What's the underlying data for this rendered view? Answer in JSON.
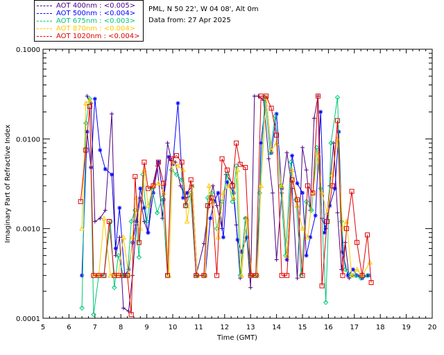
{
  "header": {
    "location": "PML, N 50 22', W 04 08', Alt 0m",
    "data_date": "Data from: 27 Apr 2025"
  },
  "chart_data": {
    "type": "line",
    "title": "",
    "xlabel": "Time (GMT)",
    "ylabel": "Imaginary Part of Refractive Index",
    "xlim": [
      5,
      20
    ],
    "ylim": [
      0.0001,
      0.1
    ],
    "yscale": "log",
    "x_ticks": [
      "5",
      "6",
      "7",
      "8",
      "9",
      "10",
      "11",
      "12",
      "13",
      "14",
      "15",
      "16",
      "17",
      "18",
      "19",
      "20"
    ],
    "y_ticks": [
      "0.0001",
      "0.0010",
      "0.0100",
      "0.1000"
    ],
    "grid": false,
    "legend_position": "top-left",
    "series": [
      {
        "name": "AOT  400nm : <0.005>",
        "color": "#4b0082",
        "marker": "plus",
        "x": [
          6.7,
          6.85,
          7.0,
          7.2,
          7.4,
          7.65,
          7.8,
          7.95,
          8.1,
          8.3,
          8.45,
          8.6,
          8.75,
          8.9,
          9.05,
          9.2,
          9.4,
          9.6,
          9.8,
          9.95,
          10.1,
          10.3,
          10.5,
          10.7,
          10.9,
          11.2,
          11.4,
          11.55,
          11.7,
          11.9,
          12.05,
          12.3,
          12.45,
          12.6,
          12.8,
          13.0,
          13.15,
          13.3,
          13.5,
          13.7,
          13.85,
          14.0,
          14.2,
          14.4,
          14.6,
          14.8,
          15.0,
          15.15,
          15.3,
          15.45,
          15.6,
          15.75,
          15.9,
          16.05,
          16.2,
          16.35,
          16.5,
          16.65,
          16.8,
          16.95,
          17.1,
          17.3,
          17.5
        ],
        "y": [
          0.03,
          0.025,
          0.0012,
          0.0013,
          0.0016,
          0.019,
          0.0005,
          0.0008,
          0.00013,
          0.00012,
          0.0003,
          0.0011,
          0.0022,
          0.0012,
          0.0009,
          0.0028,
          0.005,
          0.0013,
          0.009,
          0.0058,
          0.0055,
          0.003,
          0.0022,
          0.0023,
          0.0003,
          0.00068,
          0.0019,
          0.003,
          0.0018,
          0.001,
          0.004,
          0.0032,
          0.0011,
          0.00028,
          0.0013,
          0.00022,
          0.03,
          0.03,
          0.027,
          0.006,
          0.0025,
          0.00045,
          0.0025,
          0.007,
          0.0028,
          0.00028,
          0.008,
          0.0045,
          0.0016,
          0.017,
          0.03,
          0.0013,
          0.001,
          0.003,
          0.009,
          0.0015,
          0.00035,
          0.0007,
          0.00028,
          0.0003,
          0.0003,
          0.0003,
          0.0003
        ]
      },
      {
        "name": "AOT  500nm : <0.004>",
        "color": "#0000ff",
        "marker": "asterisk",
        "x": [
          6.5,
          6.7,
          6.85,
          7.0,
          7.2,
          7.4,
          7.65,
          7.8,
          7.95,
          8.15,
          8.3,
          8.45,
          8.6,
          8.75,
          8.9,
          9.05,
          9.25,
          9.45,
          9.65,
          9.85,
          10.0,
          10.2,
          10.4,
          10.55,
          10.75,
          10.95,
          11.25,
          11.45,
          11.6,
          11.75,
          11.95,
          12.1,
          12.35,
          12.5,
          12.65,
          12.85,
          13.05,
          13.25,
          13.4,
          13.6,
          13.8,
          14.0,
          14.2,
          14.4,
          14.6,
          14.8,
          15.0,
          15.15,
          15.3,
          15.5,
          15.7,
          15.85,
          16.05,
          16.25,
          16.4,
          16.55,
          16.75,
          16.95,
          17.1,
          17.3,
          17.55
        ],
        "y": [
          0.0003,
          0.012,
          0.0048,
          0.028,
          0.0075,
          0.0046,
          0.004,
          0.0006,
          0.0017,
          0.0003,
          0.00035,
          0.0007,
          0.0012,
          0.0028,
          0.0017,
          0.0009,
          0.0025,
          0.0055,
          0.0021,
          0.0063,
          0.0052,
          0.025,
          0.0022,
          0.0025,
          0.003,
          0.0003,
          0.0003,
          0.0013,
          0.002,
          0.0025,
          0.0008,
          0.0033,
          0.0025,
          0.00075,
          0.00055,
          0.0008,
          0.0003,
          0.0003,
          0.009,
          0.029,
          0.007,
          0.019,
          0.0028,
          0.00045,
          0.0065,
          0.0032,
          0.0025,
          0.0005,
          0.0008,
          0.0014,
          0.02,
          0.0009,
          0.0018,
          0.0028,
          0.012,
          0.00055,
          0.0003,
          0.00035,
          0.0003,
          0.00028,
          0.0003
        ]
      },
      {
        "name": "AOT  675nm : <0.003>",
        "color": "#00c878",
        "marker": "diamond",
        "x": [
          6.5,
          6.65,
          6.8,
          6.95,
          7.15,
          7.35,
          7.6,
          7.75,
          7.9,
          8.1,
          8.25,
          8.4,
          8.55,
          8.7,
          8.85,
          9.0,
          9.2,
          9.4,
          9.6,
          9.8,
          9.95,
          10.15,
          10.35,
          10.5,
          10.7,
          10.9,
          11.2,
          11.35,
          11.5,
          11.7,
          11.9,
          12.1,
          12.3,
          12.45,
          12.6,
          12.8,
          13.0,
          13.2,
          13.35,
          13.55,
          13.75,
          13.95,
          14.15,
          14.35,
          14.55,
          14.75,
          14.95,
          15.15,
          15.35,
          15.55,
          15.7,
          15.9,
          16.1,
          16.35,
          16.5,
          16.65,
          16.85,
          17.05,
          17.25,
          17.5
        ],
        "y": [
          0.00013,
          0.015,
          0.028,
          0.00011,
          0.0003,
          0.0003,
          0.0012,
          0.00022,
          0.0005,
          0.0003,
          0.0003,
          0.0012,
          0.0016,
          0.00048,
          0.004,
          0.0012,
          0.0028,
          0.0015,
          0.0022,
          0.0003,
          0.0045,
          0.004,
          0.0035,
          0.0018,
          0.0025,
          0.0003,
          0.0003,
          0.0022,
          0.0025,
          0.001,
          0.002,
          0.004,
          0.002,
          0.005,
          0.0003,
          0.0013,
          0.0003,
          0.0003,
          0.0025,
          0.029,
          0.007,
          0.018,
          0.003,
          0.0005,
          0.0055,
          0.0021,
          0.0003,
          0.002,
          0.0016,
          0.008,
          0.0028,
          0.00015,
          0.009,
          0.029,
          0.0012,
          0.00035,
          0.0003,
          0.0003,
          0.00028,
          0.0003
        ]
      },
      {
        "name": "AOT  870nm : <0.004>",
        "color": "#ffc800",
        "marker": "triangle",
        "x": [
          6.5,
          6.65,
          6.8,
          6.95,
          7.15,
          7.35,
          7.6,
          7.75,
          7.9,
          8.1,
          8.3,
          8.45,
          8.6,
          8.75,
          8.9,
          9.05,
          9.25,
          9.45,
          9.65,
          9.85,
          10.0,
          10.2,
          10.4,
          10.55,
          10.75,
          10.95,
          11.25,
          11.4,
          11.55,
          11.75,
          11.95,
          12.15,
          12.35,
          12.5,
          12.65,
          12.85,
          13.05,
          13.25,
          13.4,
          13.6,
          13.8,
          14.0,
          14.2,
          14.4,
          14.6,
          14.8,
          15.0,
          15.2,
          15.4,
          15.6,
          15.75,
          15.95,
          16.15,
          16.35,
          16.55,
          16.7,
          16.9,
          17.1,
          17.3,
          17.6
        ],
        "y": [
          0.001,
          0.025,
          0.027,
          0.0003,
          0.0003,
          0.0013,
          0.0003,
          0.0003,
          0.0003,
          0.0008,
          0.0003,
          0.0008,
          0.0022,
          0.001,
          0.0045,
          0.0018,
          0.003,
          0.0032,
          0.0025,
          0.0003,
          0.0055,
          0.005,
          0.0045,
          0.0012,
          0.003,
          0.0003,
          0.0003,
          0.003,
          0.002,
          0.0008,
          0.0025,
          0.003,
          0.0022,
          0.0045,
          0.0003,
          0.0013,
          0.0003,
          0.0003,
          0.003,
          0.029,
          0.0075,
          0.009,
          0.003,
          0.0005,
          0.0045,
          0.0018,
          0.001,
          0.0008,
          0.0025,
          0.007,
          0.0025,
          0.0015,
          0.004,
          0.01,
          0.001,
          0.0012,
          0.0003,
          0.00035,
          0.0003,
          0.00042
        ]
      },
      {
        "name": "AOT 1020nm : <0.004>",
        "color": "#e00000",
        "marker": "square",
        "x": [
          6.45,
          6.65,
          6.8,
          6.95,
          7.15,
          7.35,
          7.55,
          7.75,
          7.9,
          8.1,
          8.25,
          8.4,
          8.55,
          8.7,
          8.9,
          9.05,
          9.25,
          9.45,
          9.65,
          9.8,
          9.95,
          10.15,
          10.35,
          10.5,
          10.7,
          10.9,
          11.2,
          11.35,
          11.5,
          11.7,
          11.9,
          12.1,
          12.3,
          12.45,
          12.6,
          12.8,
          13.0,
          13.2,
          13.4,
          13.6,
          13.8,
          14.0,
          14.2,
          14.4,
          14.6,
          14.8,
          15.0,
          15.2,
          15.4,
          15.6,
          15.75,
          15.95,
          16.15,
          16.35,
          16.55,
          16.7,
          16.9,
          17.1,
          17.3,
          17.5,
          17.65
        ],
        "y": [
          0.002,
          0.0075,
          0.023,
          0.0003,
          0.0003,
          0.0003,
          0.0012,
          0.0003,
          0.0003,
          0.0003,
          0.0003,
          0.00011,
          0.0038,
          0.0007,
          0.0055,
          0.0028,
          0.003,
          0.0055,
          0.0032,
          0.0003,
          0.006,
          0.0065,
          0.0055,
          0.0018,
          0.0035,
          0.0003,
          0.0003,
          0.0018,
          0.0022,
          0.0003,
          0.006,
          0.0045,
          0.003,
          0.009,
          0.0052,
          0.0048,
          0.0003,
          0.0003,
          0.03,
          0.03,
          0.022,
          0.011,
          0.0003,
          0.0003,
          0.0035,
          0.0021,
          0.0003,
          0.003,
          0.0025,
          0.03,
          0.00023,
          0.0012,
          0.003,
          0.016,
          0.0003,
          0.001,
          0.0026,
          0.0007,
          0.0003,
          0.00085,
          0.00025
        ]
      }
    ]
  }
}
